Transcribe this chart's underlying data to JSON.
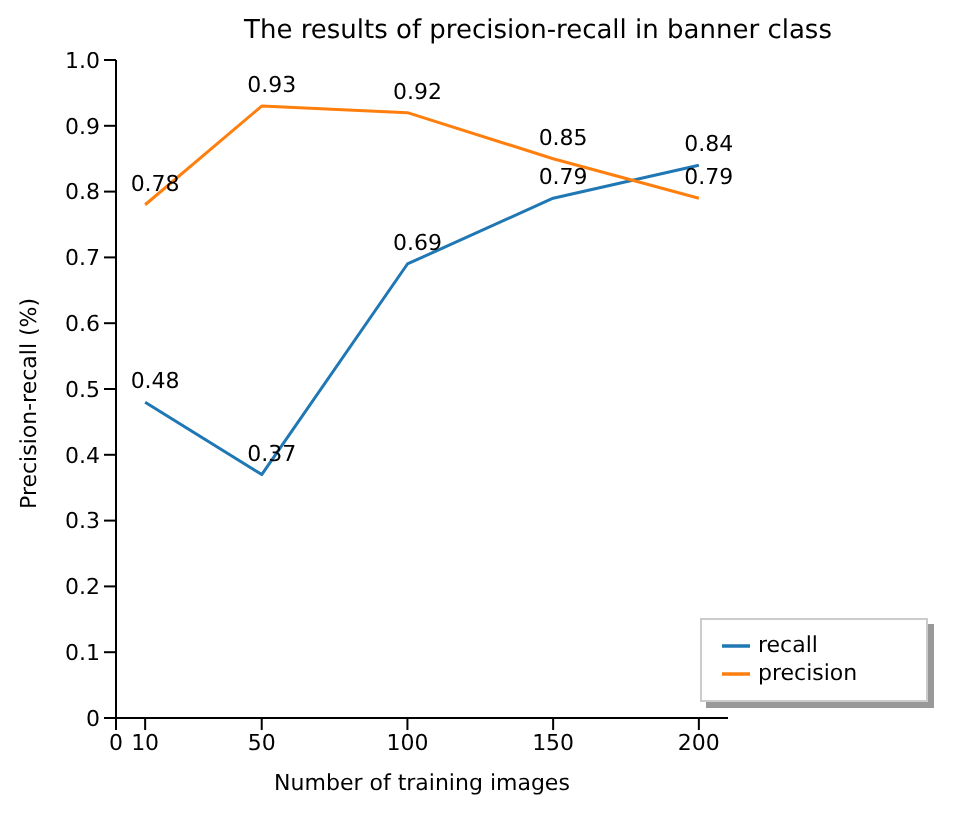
{
  "chart_data": {
    "type": "line",
    "title": "The results of precision-recall in banner class",
    "xlabel": "Number of training images",
    "ylabel": "Precision-recall (%)",
    "x": [
      10,
      50,
      100,
      150,
      200
    ],
    "series": [
      {
        "name": "recall",
        "color": "#1f77b4",
        "values": [
          0.48,
          0.37,
          0.69,
          0.79,
          0.84
        ]
      },
      {
        "name": "precision",
        "color": "#ff7f0e",
        "values": [
          0.78,
          0.93,
          0.92,
          0.85,
          0.79
        ]
      }
    ],
    "xlim": [
      0,
      210
    ],
    "xticks": [
      0,
      10,
      50,
      100,
      150,
      200
    ],
    "ylim": [
      0,
      1.0
    ],
    "yticks": [
      0,
      0.1,
      0.2,
      0.3,
      0.4,
      0.5,
      0.6,
      0.7,
      0.8,
      0.9,
      {
        "value": 1.0,
        "label": "1.0"
      }
    ],
    "data_labels": true,
    "legend": "bottom right",
    "marker": "none",
    "line_style": "solid"
  }
}
